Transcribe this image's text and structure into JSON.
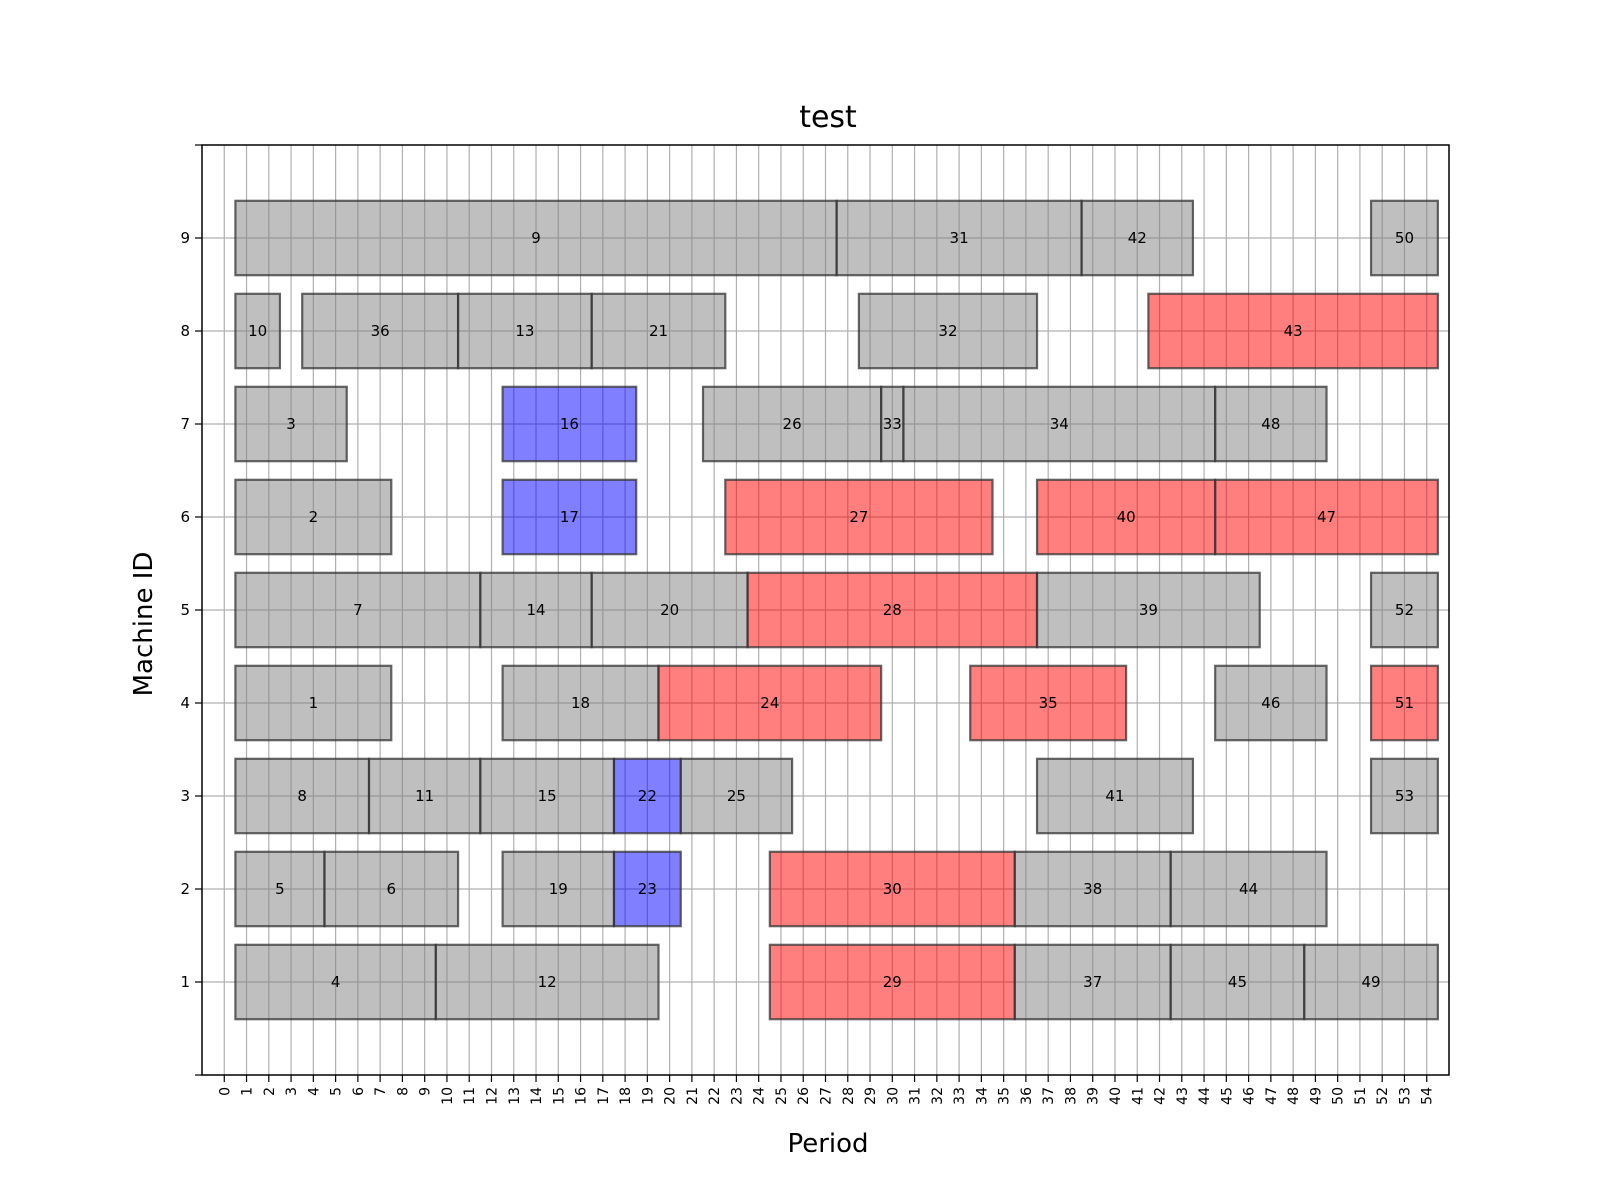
{
  "chart_data": {
    "type": "gantt",
    "title": "test",
    "xlabel": "Period",
    "ylabel": "Machine ID",
    "xlim": [
      -1,
      55
    ],
    "ylim": [
      0,
      10
    ],
    "x_ticks": [
      0,
      1,
      2,
      3,
      4,
      5,
      6,
      7,
      8,
      9,
      10,
      11,
      12,
      13,
      14,
      15,
      16,
      17,
      18,
      19,
      20,
      21,
      22,
      23,
      24,
      25,
      26,
      27,
      28,
      29,
      30,
      31,
      32,
      33,
      34,
      35,
      36,
      37,
      38,
      39,
      40,
      41,
      42,
      43,
      44,
      45,
      46,
      47,
      48,
      49,
      50,
      51,
      52,
      53,
      54
    ],
    "y_ticks": [
      1,
      2,
      3,
      4,
      5,
      6,
      7,
      8,
      9
    ],
    "grid": true,
    "colors": {
      "gray": "#808080",
      "red": "#ff0000",
      "blue": "#0000ff",
      "edge": "#333333",
      "grid": "#b0b0b0"
    },
    "tasks": [
      {
        "id": "9",
        "machine": 9,
        "start": 0.5,
        "end": 27.5,
        "color": "gray"
      },
      {
        "id": "31",
        "machine": 9,
        "start": 27.5,
        "end": 38.5,
        "color": "gray"
      },
      {
        "id": "42",
        "machine": 9,
        "start": 38.5,
        "end": 43.5,
        "color": "gray"
      },
      {
        "id": "50",
        "machine": 9,
        "start": 51.5,
        "end": 54.5,
        "color": "gray"
      },
      {
        "id": "10",
        "machine": 8,
        "start": 0.5,
        "end": 2.5,
        "color": "gray"
      },
      {
        "id": "36",
        "machine": 8,
        "start": 3.5,
        "end": 10.5,
        "color": "gray"
      },
      {
        "id": "13",
        "machine": 8,
        "start": 10.5,
        "end": 16.5,
        "color": "gray"
      },
      {
        "id": "21",
        "machine": 8,
        "start": 16.5,
        "end": 22.5,
        "color": "gray"
      },
      {
        "id": "32",
        "machine": 8,
        "start": 28.5,
        "end": 36.5,
        "color": "gray"
      },
      {
        "id": "43",
        "machine": 8,
        "start": 41.5,
        "end": 54.5,
        "color": "red"
      },
      {
        "id": "3",
        "machine": 7,
        "start": 0.5,
        "end": 5.5,
        "color": "gray"
      },
      {
        "id": "16",
        "machine": 7,
        "start": 12.5,
        "end": 18.5,
        "color": "blue"
      },
      {
        "id": "26",
        "machine": 7,
        "start": 21.5,
        "end": 29.5,
        "color": "gray"
      },
      {
        "id": "33",
        "machine": 7,
        "start": 29.5,
        "end": 30.5,
        "color": "gray"
      },
      {
        "id": "34",
        "machine": 7,
        "start": 30.5,
        "end": 44.5,
        "color": "gray"
      },
      {
        "id": "48",
        "machine": 7,
        "start": 44.5,
        "end": 49.5,
        "color": "gray"
      },
      {
        "id": "2",
        "machine": 6,
        "start": 0.5,
        "end": 7.5,
        "color": "gray"
      },
      {
        "id": "17",
        "machine": 6,
        "start": 12.5,
        "end": 18.5,
        "color": "blue"
      },
      {
        "id": "27",
        "machine": 6,
        "start": 22.5,
        "end": 34.5,
        "color": "red"
      },
      {
        "id": "40",
        "machine": 6,
        "start": 36.5,
        "end": 44.5,
        "color": "red"
      },
      {
        "id": "47",
        "machine": 6,
        "start": 44.5,
        "end": 54.5,
        "color": "red"
      },
      {
        "id": "7",
        "machine": 5,
        "start": 0.5,
        "end": 11.5,
        "color": "gray"
      },
      {
        "id": "14",
        "machine": 5,
        "start": 11.5,
        "end": 16.5,
        "color": "gray"
      },
      {
        "id": "20",
        "machine": 5,
        "start": 16.5,
        "end": 23.5,
        "color": "gray"
      },
      {
        "id": "28",
        "machine": 5,
        "start": 23.5,
        "end": 36.5,
        "color": "red"
      },
      {
        "id": "39",
        "machine": 5,
        "start": 36.5,
        "end": 46.5,
        "color": "gray"
      },
      {
        "id": "52",
        "machine": 5,
        "start": 51.5,
        "end": 54.5,
        "color": "gray"
      },
      {
        "id": "1",
        "machine": 4,
        "start": 0.5,
        "end": 7.5,
        "color": "gray"
      },
      {
        "id": "18",
        "machine": 4,
        "start": 12.5,
        "end": 19.5,
        "color": "gray"
      },
      {
        "id": "24",
        "machine": 4,
        "start": 19.5,
        "end": 29.5,
        "color": "red"
      },
      {
        "id": "35",
        "machine": 4,
        "start": 33.5,
        "end": 40.5,
        "color": "red"
      },
      {
        "id": "46",
        "machine": 4,
        "start": 44.5,
        "end": 49.5,
        "color": "gray"
      },
      {
        "id": "51",
        "machine": 4,
        "start": 51.5,
        "end": 54.5,
        "color": "red"
      },
      {
        "id": "8",
        "machine": 3,
        "start": 0.5,
        "end": 6.5,
        "color": "gray"
      },
      {
        "id": "11",
        "machine": 3,
        "start": 6.5,
        "end": 11.5,
        "color": "gray"
      },
      {
        "id": "15",
        "machine": 3,
        "start": 11.5,
        "end": 17.5,
        "color": "gray"
      },
      {
        "id": "22",
        "machine": 3,
        "start": 17.5,
        "end": 20.5,
        "color": "blue"
      },
      {
        "id": "25",
        "machine": 3,
        "start": 20.5,
        "end": 25.5,
        "color": "gray"
      },
      {
        "id": "41",
        "machine": 3,
        "start": 36.5,
        "end": 43.5,
        "color": "gray"
      },
      {
        "id": "53",
        "machine": 3,
        "start": 51.5,
        "end": 54.5,
        "color": "gray"
      },
      {
        "id": "5",
        "machine": 2,
        "start": 0.5,
        "end": 4.5,
        "color": "gray"
      },
      {
        "id": "6",
        "machine": 2,
        "start": 4.5,
        "end": 10.5,
        "color": "gray"
      },
      {
        "id": "19",
        "machine": 2,
        "start": 12.5,
        "end": 17.5,
        "color": "gray"
      },
      {
        "id": "23",
        "machine": 2,
        "start": 17.5,
        "end": 20.5,
        "color": "blue"
      },
      {
        "id": "30",
        "machine": 2,
        "start": 24.5,
        "end": 35.5,
        "color": "red"
      },
      {
        "id": "38",
        "machine": 2,
        "start": 35.5,
        "end": 42.5,
        "color": "gray"
      },
      {
        "id": "44",
        "machine": 2,
        "start": 42.5,
        "end": 49.5,
        "color": "gray"
      },
      {
        "id": "4",
        "machine": 1,
        "start": 0.5,
        "end": 9.5,
        "color": "gray"
      },
      {
        "id": "12",
        "machine": 1,
        "start": 9.5,
        "end": 19.5,
        "color": "gray"
      },
      {
        "id": "29",
        "machine": 1,
        "start": 24.5,
        "end": 35.5,
        "color": "red"
      },
      {
        "id": "37",
        "machine": 1,
        "start": 35.5,
        "end": 42.5,
        "color": "gray"
      },
      {
        "id": "45",
        "machine": 1,
        "start": 42.5,
        "end": 48.5,
        "color": "gray"
      },
      {
        "id": "49",
        "machine": 1,
        "start": 48.5,
        "end": 54.5,
        "color": "gray"
      }
    ]
  }
}
